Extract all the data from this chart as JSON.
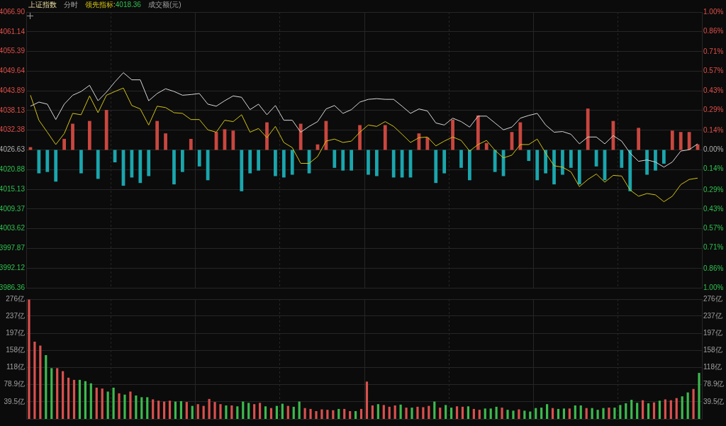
{
  "chart_data": [
    {
      "type": "line",
      "title": "上证指数",
      "subtitle": "分时",
      "annotations": [
        "4018.36",
        "成交额(元)"
      ],
      "grid": true,
      "tick_labels": "y",
      "categories": [
        null,
        null,
        null,
        null,
        null,
        null,
        null,
        null,
        null,
        null,
        null,
        null,
        null,
        null,
        null,
        null,
        null,
        null,
        null,
        null,
        null,
        null,
        null,
        null,
        null,
        null,
        null,
        null,
        null,
        null,
        null,
        null,
        null,
        null,
        null,
        null,
        null,
        null,
        null,
        null,
        null,
        null,
        null,
        null,
        null,
        null,
        null,
        null,
        null,
        null,
        null,
        null,
        null,
        null,
        null,
        null,
        null,
        null,
        null,
        null,
        null,
        null,
        null,
        null,
        null,
        null,
        null,
        null,
        null,
        null,
        null,
        null,
        null,
        null,
        null,
        null,
        null,
        null,
        null,
        null
      ],
      "series": [
        {
          "type": "bar",
          "axis": "y2",
          "values": [
            0.02,
            -0.17,
            -0.16,
            -0.23,
            0.08,
            0.19,
            -0.17,
            0.21,
            -0.21,
            0.29,
            -0.09,
            -0.26,
            -0.2,
            -0.24,
            -0.19,
            0.21,
            0.12,
            -0.25,
            -0.16,
            0.08,
            -0.12,
            -0.22,
            0.13,
            0.15,
            0.14,
            -0.3,
            -0.17,
            -0.15,
            0.2,
            -0.19,
            -0.2,
            -0.18,
            0.19,
            -0.17,
            0.04,
            0.21,
            -0.13,
            -0.15,
            -0.15,
            0.18,
            -0.18,
            -0.19,
            0.18,
            -0.2,
            -0.2,
            -0.2,
            0.12,
            0.09,
            -0.24,
            -0.17,
            0.22,
            -0.13,
            -0.22,
            0.25,
            0.05,
            -0.16,
            -0.19,
            0.13,
            0.2,
            -0.08,
            -0.22,
            -0.17,
            -0.25,
            -0.18,
            -0.13,
            -0.25,
            0.3,
            -0.12,
            -0.22,
            0.21,
            -0.13,
            -0.3,
            0.16,
            -0.18,
            -0.15,
            -0.1,
            0.14,
            0.13,
            0.13,
            0.04
          ],
          "colors": [
            "#c9473f",
            "#1aa6ad",
            "#1aa6ad",
            "#1aa6ad",
            "#c9473f",
            "#c9473f",
            "#1aa6ad",
            "#c9473f",
            "#1aa6ad",
            "#c9473f",
            "#1aa6ad",
            "#1aa6ad",
            "#1aa6ad",
            "#1aa6ad",
            "#1aa6ad",
            "#c9473f",
            "#c9473f",
            "#1aa6ad",
            "#1aa6ad",
            "#c9473f",
            "#1aa6ad",
            "#1aa6ad",
            "#c9473f",
            "#c9473f",
            "#c9473f",
            "#1aa6ad",
            "#1aa6ad",
            "#1aa6ad",
            "#c9473f",
            "#1aa6ad",
            "#1aa6ad",
            "#1aa6ad",
            "#c9473f",
            "#1aa6ad",
            "#c9473f",
            "#c9473f",
            "#1aa6ad",
            "#1aa6ad",
            "#1aa6ad",
            "#c9473f",
            "#1aa6ad",
            "#1aa6ad",
            "#c9473f",
            "#1aa6ad",
            "#1aa6ad",
            "#1aa6ad",
            "#c9473f",
            "#c9473f",
            "#1aa6ad",
            "#1aa6ad",
            "#c9473f",
            "#1aa6ad",
            "#1aa6ad",
            "#c9473f",
            "#c9473f",
            "#1aa6ad",
            "#1aa6ad",
            "#c9473f",
            "#c9473f",
            "#1aa6ad",
            "#1aa6ad",
            "#1aa6ad",
            "#1aa6ad",
            "#1aa6ad",
            "#1aa6ad",
            "#1aa6ad",
            "#c9473f",
            "#1aa6ad",
            "#1aa6ad",
            "#c9473f",
            "#1aa6ad",
            "#1aa6ad",
            "#c9473f",
            "#1aa6ad",
            "#1aa6ad",
            "#1aa6ad",
            "#c9473f",
            "#c9473f",
            "#c9473f",
            "#c9473f"
          ]
        },
        {
          "color": "#d8d8d8",
          "values": [
            4039.4,
            4040.6,
            4040.0,
            4035.5,
            4040.0,
            4042.6,
            4043.7,
            4045.5,
            4041.0,
            4043.5,
            4046.5,
            4049.2,
            4047.1,
            4047.1,
            4041.0,
            4043.1,
            4044.5,
            4043.7,
            4042.6,
            4042.8,
            4043.1,
            4040.0,
            4039.4,
            4041.0,
            4042.4,
            4042.0,
            4038.4,
            4040.0,
            4036.9,
            4039.6,
            4035.3,
            4035.3,
            4031.8,
            4033.5,
            4034.9,
            4038.6,
            4039.6,
            4037.3,
            4038.4,
            4040.6,
            4041.4,
            4041.6,
            4041.4,
            4041.4,
            4039.4,
            4037.3,
            4038.6,
            4038.0,
            4034.5,
            4033.9,
            4035.9,
            4034.9,
            4033.3,
            4036.5,
            4036.5,
            4034.5,
            4032.5,
            4033.3,
            4035.9,
            4036.7,
            4037.3,
            4033.9,
            4031.8,
            4032.0,
            4031.2,
            4028.4,
            4030.4,
            4030.4,
            4028.4,
            4030.8,
            4029.2,
            4025.7,
            4023.3,
            4023.7,
            4023.1,
            4021.6,
            4023.1,
            4026.3,
            4026.7,
            4028.4
          ]
        },
        {
          "name": "领先指标:",
          "color": "#d4c414",
          "values": [
            4042.6,
            4035.3,
            4031.8,
            4028.2,
            4031.4,
            4037.3,
            4036.9,
            4042.4,
            4037.5,
            4042.6,
            4043.7,
            4044.7,
            4039.6,
            4038.6,
            4033.9,
            4039.4,
            4039.0,
            4037.5,
            4037.3,
            4035.5,
            4035.5,
            4032.5,
            4031.8,
            4035.3,
            4034.9,
            4036.9,
            4031.8,
            4032.9,
            4030.2,
            4033.5,
            4028.8,
            4027.3,
            4022.7,
            4022.7,
            4024.7,
            4029.2,
            4029.8,
            4028.8,
            4029.2,
            4031.8,
            4033.9,
            4033.5,
            4034.9,
            4033.5,
            4031.2,
            4028.8,
            4030.2,
            4030.4,
            4027.8,
            4029.2,
            4030.4,
            4029.4,
            4026.3,
            4028.2,
            4029.4,
            4026.5,
            4024.3,
            4025.1,
            4028.2,
            4028.2,
            4029.8,
            4025.7,
            4022.0,
            4021.6,
            4020.2,
            4015.9,
            4018.0,
            4019.6,
            4017.2,
            4019.2,
            4019.0,
            4014.9,
            4013.1,
            4013.9,
            4013.5,
            4011.5,
            4013.1,
            4016.5,
            4018.0,
            4018.4
          ]
        }
      ],
      "ylim": [
        3986.36,
        4066.9
      ],
      "yticks": [
        {
          "value": 4066.9,
          "label": "4066.90"
        },
        4061.14,
        4055.39,
        4049.64,
        4043.89,
        4038.13,
        4032.38,
        4026.63,
        4020.88,
        4015.13,
        4009.37,
        4003.62,
        3997.87,
        3992.12,
        3986.36
      ],
      "y2lim": [
        -1,
        1
      ],
      "y2ticks": [
        {
          "value": 1,
          "label": "1.00%"
        },
        {
          "value": 0.86,
          "label": "0.86%"
        },
        {
          "value": 0.71,
          "label": "0.71%"
        },
        {
          "value": 0.57,
          "label": "0.57%"
        },
        {
          "value": 0.43,
          "label": "0.43%"
        },
        {
          "value": 0.29,
          "label": "0.29%"
        },
        {
          "value": 0.14,
          "label": "0.14%"
        },
        {
          "value": 0,
          "label": "0.00%"
        },
        {
          "value": -0.14,
          "label": "0.14%"
        },
        {
          "value": -0.29,
          "label": "0.29%"
        },
        {
          "value": -0.43,
          "label": "0.43%"
        },
        {
          "value": -0.57,
          "label": "0.57%"
        },
        {
          "value": -0.71,
          "label": "0.71%"
        },
        {
          "value": -0.86,
          "label": "0.86%"
        },
        {
          "value": -1,
          "label": "1.00%"
        }
      ]
    },
    {
      "type": "bar",
      "grid": true,
      "tick_labels": "y",
      "categories": [
        null,
        null,
        null,
        null,
        null,
        null,
        null,
        null,
        null,
        null,
        null,
        null,
        null,
        null,
        null,
        null,
        null,
        null,
        null,
        null,
        null,
        null,
        null,
        null,
        null,
        null,
        null,
        null,
        null,
        null,
        null,
        null,
        null,
        null,
        null,
        null,
        null,
        null,
        null,
        null,
        null,
        null,
        null,
        null,
        null,
        null,
        null,
        null,
        null,
        null,
        null,
        null,
        null,
        null,
        null,
        null,
        null,
        null,
        null,
        null,
        null,
        null,
        null,
        null,
        null,
        null,
        null,
        null,
        null,
        null,
        null,
        null,
        null,
        null,
        null,
        null,
        null,
        null,
        null,
        null,
        null,
        null,
        null,
        null,
        null,
        null,
        null,
        null,
        null,
        null,
        null,
        null,
        null,
        null,
        null,
        null,
        null,
        null,
        null,
        null,
        null,
        null,
        null,
        null,
        null,
        null,
        null,
        null,
        null,
        null,
        null,
        null,
        null,
        null,
        null,
        null,
        null,
        null,
        null,
        null
      ],
      "values": [
        275,
        178,
        169,
        147,
        117,
        117,
        110,
        95,
        90,
        90,
        87,
        82,
        72,
        70,
        63,
        72,
        59,
        56,
        63,
        54,
        50,
        50,
        45,
        42,
        40,
        42,
        40,
        41,
        39,
        30,
        34,
        30,
        46,
        39,
        34,
        31,
        31,
        29,
        40,
        37,
        34,
        37,
        29,
        25,
        30,
        35,
        30,
        28,
        40,
        25,
        23,
        18,
        22,
        21,
        20,
        23,
        23,
        18,
        18,
        23,
        86,
        31,
        34,
        32,
        28,
        31,
        33,
        26,
        26,
        28,
        27,
        30,
        40,
        26,
        32,
        26,
        29,
        28,
        29,
        23,
        21,
        24,
        24,
        28,
        26,
        21,
        19,
        22,
        19,
        17,
        25,
        26,
        34,
        25,
        23,
        24,
        24,
        31,
        31,
        25,
        25,
        21,
        25,
        26,
        26,
        32,
        36,
        44,
        37,
        43,
        36,
        38,
        42,
        45,
        43,
        48,
        52,
        61,
        69,
        106
      ],
      "colors": [
        "#d9514e",
        "#d9514e",
        "#d9514e",
        "#3dba4e",
        "#3dba4e",
        "#d9514e",
        "#d9514e",
        "#d9514e",
        "#d9514e",
        "#3dba4e",
        "#3dba4e",
        "#3dba4e",
        "#d9514e",
        "#d9514e",
        "#3dba4e",
        "#3dba4e",
        "#d9514e",
        "#3dba4e",
        "#d9514e",
        "#3dba4e",
        "#3dba4e",
        "#3dba4e",
        "#d9514e",
        "#d9514e",
        "#d9514e",
        "#d9514e",
        "#3dba4e",
        "#3dba4e",
        "#d9514e",
        "#3dba4e",
        "#d9514e",
        "#d9514e",
        "#d9514e",
        "#d9514e",
        "#d9514e",
        "#3dba4e",
        "#d9514e",
        "#3dba4e",
        "#3dba4e",
        "#3dba4e",
        "#d9514e",
        "#d9514e",
        "#3dba4e",
        "#d9514e",
        "#3dba4e",
        "#3dba4e",
        "#d9514e",
        "#3dba4e",
        "#3dba4e",
        "#d9514e",
        "#d9514e",
        "#d9514e",
        "#d9514e",
        "#d9514e",
        "#d9514e",
        "#3dba4e",
        "#d9514e",
        "#d9514e",
        "#3dba4e",
        "#d9514e",
        "#d9514e",
        "#d9514e",
        "#3dba4e",
        "#d9514e",
        "#d9514e",
        "#d9514e",
        "#3dba4e",
        "#d9514e",
        "#3dba4e",
        "#d9514e",
        "#d9514e",
        "#d9514e",
        "#3dba4e",
        "#d9514e",
        "#3dba4e",
        "#3dba4e",
        "#d9514e",
        "#d9514e",
        "#3dba4e",
        "#d9514e",
        "#d9514e",
        "#3dba4e",
        "#3dba4e",
        "#3dba4e",
        "#d9514e",
        "#3dba4e",
        "#3dba4e",
        "#d9514e",
        "#3dba4e",
        "#3dba4e",
        "#3dba4e",
        "#3dba4e",
        "#3dba4e",
        "#d9514e",
        "#3dba4e",
        "#3dba4e",
        "#d9514e",
        "#3dba4e",
        "#3dba4e",
        "#d9514e",
        "#3dba4e",
        "#3dba4e",
        "#3dba4e",
        "#d9514e",
        "#3dba4e",
        "#3dba4e",
        "#3dba4e",
        "#3dba4e",
        "#3dba4e",
        "#d9514e",
        "#3dba4e",
        "#d9514e",
        "#3dba4e",
        "#d9514e",
        "#d9514e",
        "#d9514e",
        "#3dba4e",
        "#3dba4e",
        "#d9514e",
        "#3dba4e"
      ],
      "ylim": [
        0,
        276
      ],
      "yticks": [
        {
          "value": 39.5,
          "label": "39.5亿"
        },
        {
          "value": 78.9,
          "label": "78.9亿"
        },
        {
          "value": 118,
          "label": "118亿"
        },
        {
          "value": 158,
          "label": "158亿"
        },
        {
          "value": 197,
          "label": "197亿"
        },
        {
          "value": 237,
          "label": "237亿"
        },
        {
          "value": 276,
          "label": "276亿"
        }
      ],
      "y2lim": [
        0,
        276
      ],
      "y2ticks": [
        {
          "value": 39.5,
          "label": "39.5亿"
        },
        {
          "value": 78.9,
          "label": "78.9亿"
        },
        {
          "value": 118,
          "label": "118亿"
        },
        {
          "value": 158,
          "label": "158亿"
        },
        {
          "value": 197,
          "label": "197亿"
        },
        {
          "value": 237,
          "label": "237亿"
        },
        {
          "value": 276,
          "label": "276亿"
        }
      ]
    }
  ]
}
